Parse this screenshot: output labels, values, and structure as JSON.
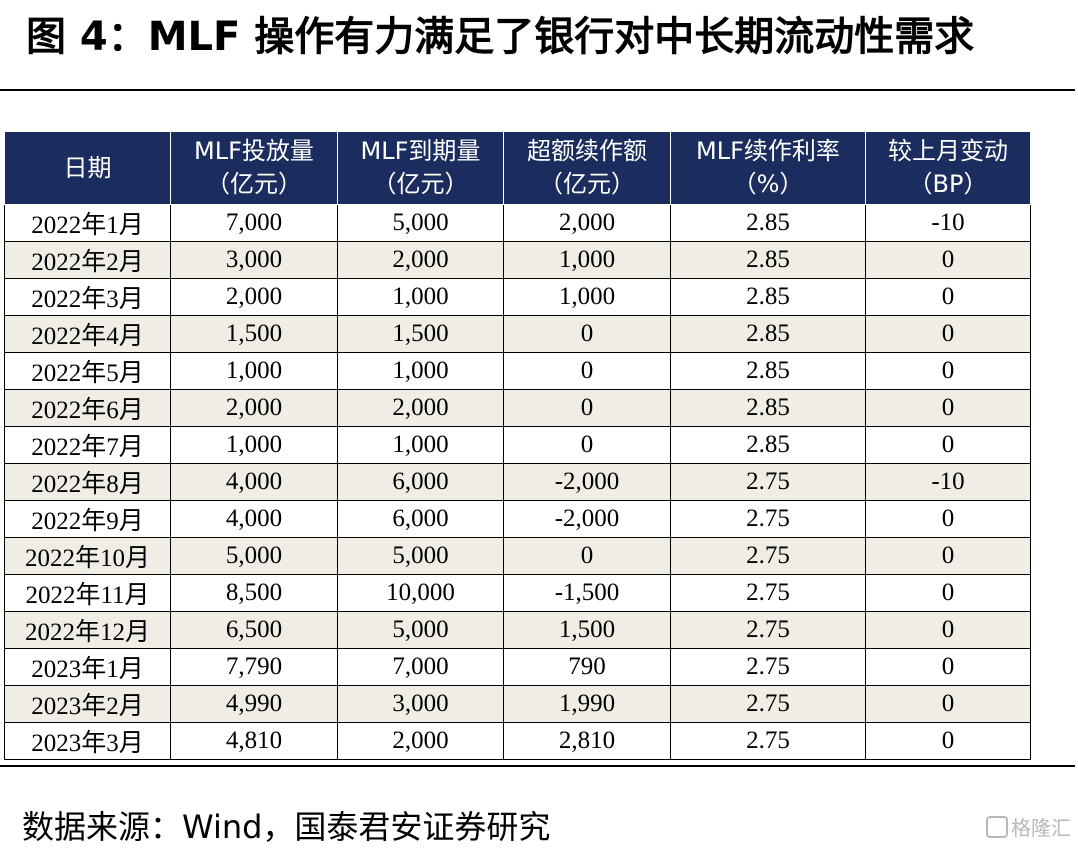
{
  "title": "图 4：MLF 操作有力满足了银行对中长期流动性需求",
  "table": {
    "headers": [
      {
        "l1": "日期",
        "l2": ""
      },
      {
        "l1": "MLF投放量",
        "l2": "（亿元）"
      },
      {
        "l1": "MLF到期量",
        "l2": "（亿元）"
      },
      {
        "l1": "超额续作额",
        "l2": "（亿元）"
      },
      {
        "l1": "MLF续作利率",
        "l2": "（%）"
      },
      {
        "l1": "较上月变动",
        "l2": "（BP）"
      }
    ],
    "rows": [
      [
        "2022年1月",
        "7,000",
        "5,000",
        "2,000",
        "2.85",
        "-10"
      ],
      [
        "2022年2月",
        "3,000",
        "2,000",
        "1,000",
        "2.85",
        "0"
      ],
      [
        "2022年3月",
        "2,000",
        "1,000",
        "1,000",
        "2.85",
        "0"
      ],
      [
        "2022年4月",
        "1,500",
        "1,500",
        "0",
        "2.85",
        "0"
      ],
      [
        "2022年5月",
        "1,000",
        "1,000",
        "0",
        "2.85",
        "0"
      ],
      [
        "2022年6月",
        "2,000",
        "2,000",
        "0",
        "2.85",
        "0"
      ],
      [
        "2022年7月",
        "1,000",
        "1,000",
        "0",
        "2.85",
        "0"
      ],
      [
        "2022年8月",
        "4,000",
        "6,000",
        "-2,000",
        "2.75",
        "-10"
      ],
      [
        "2022年9月",
        "4,000",
        "6,000",
        "-2,000",
        "2.75",
        "0"
      ],
      [
        "2022年10月",
        "5,000",
        "5,000",
        "0",
        "2.75",
        "0"
      ],
      [
        "2022年11月",
        "8,500",
        "10,000",
        "-1,500",
        "2.75",
        "0"
      ],
      [
        "2022年12月",
        "6,500",
        "5,000",
        "1,500",
        "2.75",
        "0"
      ],
      [
        "2023年1月",
        "7,790",
        "7,000",
        "790",
        "2.75",
        "0"
      ],
      [
        "2023年2月",
        "4,990",
        "3,000",
        "1,990",
        "2.75",
        "0"
      ],
      [
        "2023年3月",
        "4,810",
        "2,000",
        "2,810",
        "2.75",
        "0"
      ]
    ]
  },
  "source": "数据来源：Wind，国泰君安证券研究",
  "watermark": "格隆汇",
  "colors": {
    "header_bg": "#1b2c5e",
    "stripe_bg": "#efede4"
  }
}
